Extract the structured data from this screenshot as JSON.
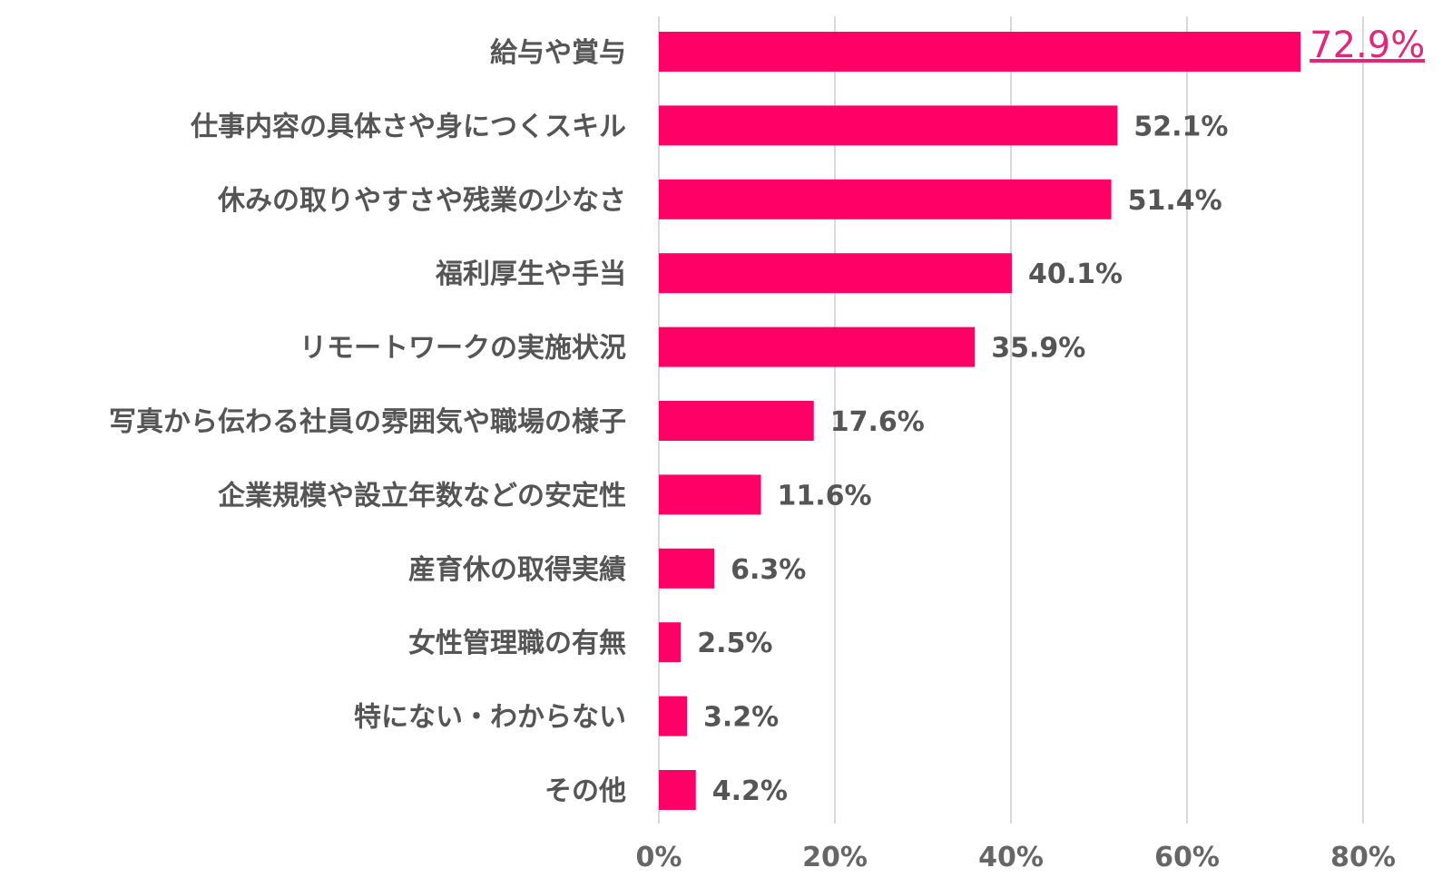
{
  "colors": {
    "bar": "#ff0066",
    "highlight_label": "#e0297a",
    "grid": "#d9d9d9",
    "text": "#555555"
  },
  "chart_data": {
    "type": "bar",
    "orientation": "horizontal",
    "categories": [
      "給与や賞与",
      "仕事内容の具体さや身につくスキル",
      "休みの取りやすさや残業の少なさ",
      "福利厚生や手当",
      "リモートワークの実施状況",
      "写真から伝わる社員の雰囲気や職場の様子",
      "企業規模や設立年数などの安定性",
      "産育休の取得実績",
      "女性管理職の有無",
      "特にない・わからない",
      "その他"
    ],
    "values": [
      72.9,
      52.1,
      51.4,
      40.1,
      35.9,
      17.6,
      11.6,
      6.3,
      2.5,
      3.2,
      4.2
    ],
    "value_labels": [
      "72.9%",
      "52.1%",
      "51.4%",
      "40.1%",
      "35.9%",
      "17.6%",
      "11.6%",
      "6.3%",
      "2.5%",
      "3.2%",
      "4.2%"
    ],
    "highlight_index": 0,
    "x_ticks": [
      0,
      20,
      40,
      60,
      80
    ],
    "x_tick_labels": [
      "0%",
      "20%",
      "40%",
      "60%",
      "80%"
    ],
    "xlim": [
      0,
      80
    ],
    "grid": true,
    "legend": "none",
    "title": "",
    "xlabel": "",
    "ylabel": ""
  }
}
